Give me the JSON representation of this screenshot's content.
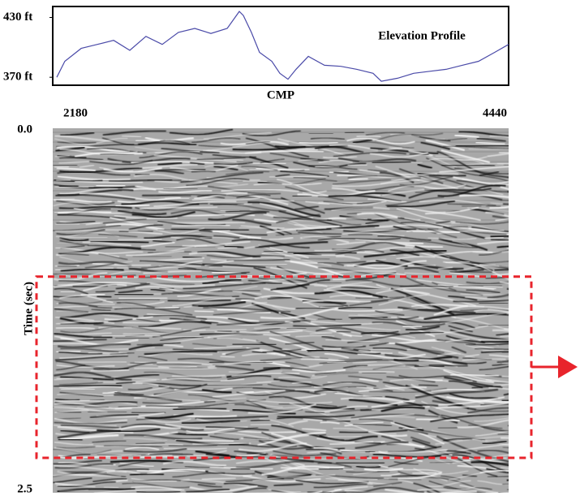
{
  "chart_data": [
    {
      "type": "line",
      "title": "Elevation Profile",
      "xlabel": "CMP",
      "x": [
        2200,
        2240,
        2321,
        2401,
        2482,
        2562,
        2642,
        2723,
        2803,
        2884,
        2964,
        3045,
        3105,
        3125,
        3165,
        3205,
        3266,
        3306,
        3346,
        3386,
        3447,
        3527,
        3608,
        3688,
        3768,
        3809,
        3889,
        3969,
        4050,
        4130,
        4210,
        4291,
        4371,
        4440
      ],
      "series": [
        {
          "color": "#4a4aa8",
          "values": [
            370,
            386,
            399,
            403,
            407,
            397,
            411,
            403,
            415,
            419,
            414,
            419,
            436,
            432,
            415,
            395,
            386,
            374,
            368,
            378,
            391,
            382,
            381,
            378,
            374,
            366,
            369,
            374,
            376,
            378,
            382,
            386,
            395,
            403
          ]
        }
      ],
      "xlim": [
        2180,
        4440
      ],
      "xticks": [
        2180,
        4440
      ],
      "ylim": [
        362,
        441
      ],
      "yticks": [
        {
          "value": 430,
          "label": "430 ft"
        },
        {
          "value": 370,
          "label": "370 ft"
        }
      ]
    },
    {
      "type": "seismic",
      "ylabel": "Time (sec)",
      "ylim": [
        0,
        2.5
      ],
      "yticks": [
        {
          "value": 0,
          "label": "0.0"
        },
        2.5
      ],
      "highlight": {
        "ylim": [
          1.02,
          2.28
        ],
        "color": "#e8242c"
      }
    }
  ]
}
